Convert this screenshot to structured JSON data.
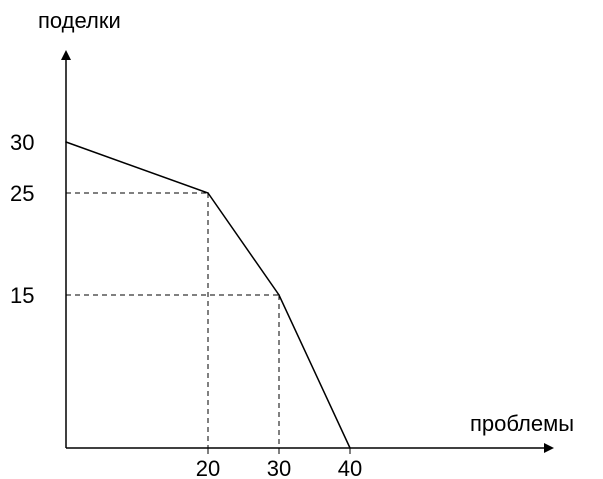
{
  "chart_data": {
    "type": "line",
    "xlabel": "проблемы",
    "ylabel": "поделки",
    "x": [
      0,
      20,
      30,
      40
    ],
    "y": [
      30,
      25,
      15,
      0
    ],
    "x_ticks": [
      "20",
      "30",
      "40"
    ],
    "y_ticks": [
      "30",
      "25",
      "15"
    ],
    "xlim": [
      0,
      40
    ],
    "ylim": [
      0,
      30
    ],
    "grid": false,
    "reference_points": [
      {
        "x": 20,
        "y": 25
      },
      {
        "x": 30,
        "y": 15
      }
    ],
    "colors": {
      "line": "#000000",
      "axes": "#000000"
    }
  }
}
